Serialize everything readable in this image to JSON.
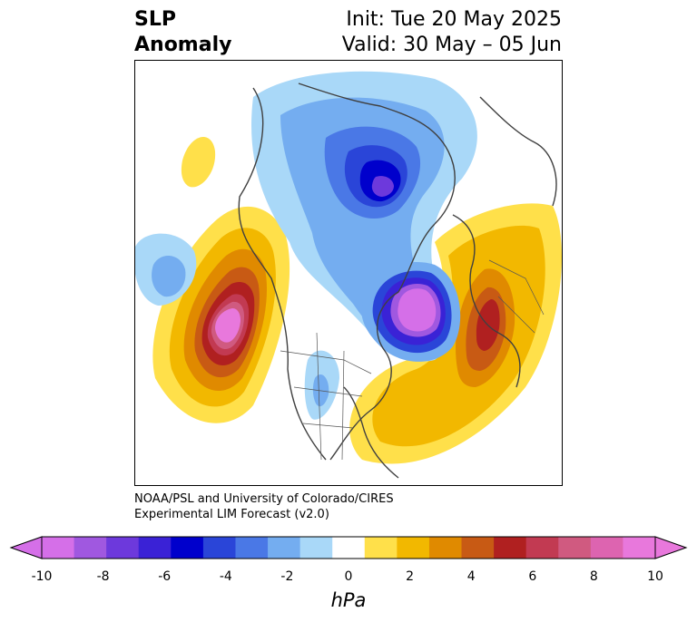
{
  "title": {
    "left_line1": "SLP",
    "left_line2": "Anomaly",
    "right_line1": "Init: Tue 20 May 2025",
    "right_line2": "Valid: 30 May – 05 Jun"
  },
  "credit": {
    "line1": "NOAA/PSL and University of Colorado/CIRES",
    "line2": "Experimental LIM Forecast (v2.0)"
  },
  "colorbar": {
    "unit": "hPa",
    "ticks": [
      "-10",
      "-8",
      "-6",
      "-4",
      "-2",
      "0",
      "2",
      "4",
      "6",
      "8",
      "10"
    ],
    "levels": [
      -10,
      -9,
      -8,
      -7,
      -6,
      -5,
      -4,
      -3,
      -2,
      -1,
      1,
      2,
      3,
      4,
      5,
      6,
      7,
      8,
      9,
      10
    ],
    "colors": [
      "#d56fe8",
      "#a058e0",
      "#6d39dc",
      "#3a22d6",
      "#0000cc",
      "#2a45d8",
      "#4a78e6",
      "#74adf0",
      "#a9d8f8",
      "#ffffff",
      "#ffe04a",
      "#f2b800",
      "#e08a00",
      "#c85a14",
      "#b02020",
      "#c23a52",
      "#d05a80",
      "#dd64b0",
      "#e878dc"
    ],
    "extend_low_color": "#d56fe8",
    "extend_high_color": "#e878dc"
  }
}
